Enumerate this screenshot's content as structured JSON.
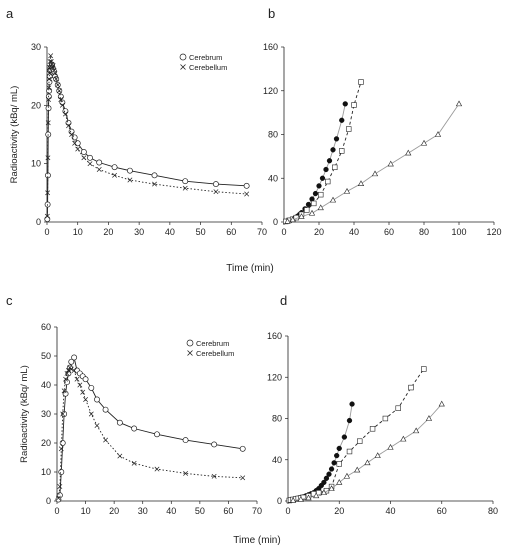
{
  "figure": {
    "shared_xlabel": "Time (min)",
    "panels": [
      {
        "label": "a"
      },
      {
        "label": "b"
      },
      {
        "label": "c"
      },
      {
        "label": "d"
      }
    ]
  },
  "colors": {
    "ink": "#222222",
    "grey_line": "#9a9a9a"
  },
  "chart_data": [
    {
      "panel": "a",
      "type": "line",
      "xlabel": "",
      "ylabel": "Radioactivity (kBq/ mL)",
      "xlim": [
        0,
        70
      ],
      "ylim": [
        0,
        30
      ],
      "xticks": [
        0,
        10,
        20,
        30,
        40,
        50,
        60,
        70
      ],
      "yticks": [
        0,
        10,
        20,
        30
      ],
      "grid": false,
      "legend_position": "top-right",
      "series": [
        {
          "name": "Cerebrum",
          "marker": "circle",
          "line": "solid",
          "x": [
            0.1,
            0.2,
            0.3,
            0.4,
            0.5,
            0.6,
            0.7,
            0.8,
            0.9,
            1.0,
            1.2,
            1.4,
            1.6,
            1.8,
            2.0,
            2.3,
            2.6,
            3.0,
            3.5,
            4.0,
            4.5,
            5.0,
            6.0,
            7.0,
            8.0,
            9.0,
            10.0,
            12.0,
            14.0,
            17.0,
            22.0,
            27.0,
            35.0,
            45.0,
            55.0,
            65.0
          ],
          "y": [
            0.5,
            3.0,
            8.0,
            15.0,
            19.5,
            21.5,
            22.5,
            24.0,
            25.0,
            26.0,
            26.5,
            26.0,
            27.0,
            26.5,
            26.2,
            25.8,
            25.0,
            24.5,
            23.5,
            22.5,
            21.5,
            20.5,
            19.0,
            17.0,
            15.5,
            14.5,
            13.5,
            12.0,
            11.0,
            10.2,
            9.4,
            8.8,
            8.0,
            7.0,
            6.5,
            6.2
          ]
        },
        {
          "name": "Cerebellum",
          "marker": "x",
          "line": "dotted",
          "x": [
            0.1,
            0.2,
            0.3,
            0.4,
            0.5,
            0.6,
            0.7,
            0.8,
            0.9,
            1.0,
            1.2,
            1.4,
            1.6,
            1.8,
            2.0,
            2.3,
            2.6,
            3.0,
            3.5,
            4.0,
            4.5,
            5.0,
            6.0,
            7.0,
            8.0,
            9.0,
            10.0,
            12.0,
            14.0,
            17.0,
            22.0,
            27.0,
            35.0,
            45.0,
            55.0,
            65.0
          ],
          "y": [
            1.0,
            5.0,
            11.0,
            17.0,
            21.0,
            23.0,
            24.5,
            25.5,
            26.5,
            27.5,
            28.5,
            27.5,
            27.0,
            26.5,
            26.8,
            26.0,
            25.5,
            24.5,
            23.5,
            22.5,
            21.0,
            20.0,
            18.5,
            16.5,
            15.0,
            13.5,
            12.5,
            11.0,
            10.0,
            9.0,
            8.0,
            7.2,
            6.5,
            5.8,
            5.2,
            4.8
          ]
        }
      ]
    },
    {
      "panel": "b",
      "type": "scatter",
      "xlabel": "",
      "ylabel": "",
      "xlim": [
        0,
        120
      ],
      "ylim": [
        0,
        160
      ],
      "xticks": [
        0,
        20,
        40,
        60,
        80,
        100,
        120
      ],
      "yticks": [
        0,
        40,
        80,
        120,
        160
      ],
      "grid": false,
      "series": [
        {
          "marker": "filled-circle",
          "line": "solid-grey",
          "x": [
            1,
            2,
            3,
            4,
            5,
            6,
            7,
            8,
            9,
            10,
            12,
            14,
            16,
            18,
            20,
            22,
            24,
            26,
            28,
            30,
            33,
            35
          ],
          "y": [
            0.5,
            1,
            1.5,
            2,
            2.5,
            3.5,
            4.5,
            5.5,
            7,
            8.5,
            12,
            16,
            21,
            26,
            33,
            40,
            48,
            56,
            66,
            76,
            93,
            108
          ]
        },
        {
          "marker": "open-square",
          "line": "dashed",
          "x": [
            1,
            3,
            5,
            7,
            10,
            13,
            17,
            21,
            25,
            29,
            33,
            37,
            40,
            44
          ],
          "y": [
            0.5,
            1.5,
            2.5,
            4,
            7,
            11,
            17,
            25,
            37,
            50,
            65,
            85,
            107,
            128
          ]
        },
        {
          "marker": "open-triangle",
          "line": "solid-grey",
          "x": [
            2,
            5,
            10,
            16,
            21,
            28,
            36,
            44,
            52,
            61,
            71,
            80,
            88,
            100
          ],
          "y": [
            0.5,
            2,
            5,
            8,
            13,
            20,
            28,
            35,
            44,
            53,
            63,
            72,
            80,
            108
          ]
        }
      ]
    },
    {
      "panel": "c",
      "type": "line",
      "xlabel": "",
      "ylabel": "Radioactivity (kBq/ mL)",
      "xlim": [
        0,
        70
      ],
      "ylim": [
        0,
        60
      ],
      "xticks": [
        0,
        10,
        20,
        30,
        40,
        50,
        60,
        70
      ],
      "yticks": [
        0,
        10,
        20,
        30,
        40,
        50,
        60
      ],
      "grid": false,
      "legend_position": "top-right",
      "series": [
        {
          "name": "Cerebrum",
          "marker": "circle",
          "line": "solid",
          "x": [
            0.5,
            1.0,
            1.5,
            2.0,
            2.5,
            3.0,
            3.5,
            4.0,
            4.5,
            5.0,
            6.0,
            7.0,
            8.0,
            9.0,
            10.0,
            12.0,
            14.0,
            17.0,
            22.0,
            27.0,
            35.0,
            45.0,
            55.0,
            65.0
          ],
          "y": [
            0.5,
            2.0,
            10.0,
            20.0,
            30.0,
            37.0,
            41.0,
            44.0,
            46.0,
            48.0,
            49.5,
            45.0,
            44.0,
            43.0,
            42.0,
            39.0,
            35.0,
            31.5,
            27.0,
            25.0,
            23.0,
            21.0,
            19.5,
            18.0
          ]
        },
        {
          "name": "Cerebellum",
          "marker": "x",
          "line": "dotted",
          "x": [
            0.5,
            1.0,
            1.5,
            2.0,
            2.5,
            3.0,
            3.5,
            4.0,
            4.5,
            5.0,
            6.0,
            7.0,
            8.0,
            9.0,
            10.0,
            12.0,
            14.0,
            17.0,
            22.0,
            27.0,
            35.0,
            45.0,
            55.0,
            65.0
          ],
          "y": [
            1.0,
            5.0,
            18.0,
            30.0,
            38.0,
            42.0,
            44.0,
            45.0,
            46.0,
            45.5,
            45.0,
            42.0,
            40.0,
            37.5,
            35.0,
            30.0,
            26.0,
            21.0,
            15.5,
            13.0,
            11.0,
            9.5,
            8.5,
            8.0
          ]
        }
      ]
    },
    {
      "panel": "d",
      "type": "scatter",
      "xlabel": "",
      "ylabel": "",
      "xlim": [
        0,
        80
      ],
      "ylim": [
        0,
        160
      ],
      "xticks": [
        0,
        20,
        40,
        60,
        80
      ],
      "yticks": [
        0,
        40,
        80,
        120,
        160
      ],
      "grid": false,
      "series": [
        {
          "marker": "filled-circle",
          "line": "solid-grey",
          "x": [
            0.5,
            1,
            1.5,
            2,
            2.5,
            3,
            3.5,
            4,
            4.5,
            5,
            6,
            7,
            8,
            9,
            10,
            11,
            12,
            13,
            14,
            15,
            16,
            17,
            18,
            19,
            20,
            22,
            24,
            25
          ],
          "y": [
            0.5,
            1,
            1.2,
            1.5,
            1.8,
            2,
            2.3,
            2.7,
            3,
            3.5,
            4,
            5,
            6,
            7,
            8,
            10,
            12,
            15,
            18,
            22,
            26,
            31,
            37,
            44,
            51,
            62,
            78,
            94
          ]
        },
        {
          "marker": "open-square",
          "line": "dashed",
          "x": [
            0.5,
            1,
            2,
            3,
            4,
            5,
            6,
            8,
            10,
            12,
            15,
            17,
            20,
            24,
            28,
            33,
            38,
            43,
            48,
            53
          ],
          "y": [
            0.5,
            1,
            1.5,
            2,
            2.5,
            3,
            3.5,
            5,
            7,
            8,
            10,
            14,
            36,
            48,
            58,
            70,
            80,
            90,
            110,
            128
          ]
        },
        {
          "marker": "open-triangle",
          "line": "solid-grey",
          "x": [
            2,
            5,
            8,
            11,
            14,
            17,
            20,
            23,
            27,
            31,
            35,
            40,
            45,
            50,
            55,
            60
          ],
          "y": [
            0.5,
            1.5,
            3,
            5,
            8,
            12,
            18,
            24,
            30,
            37,
            44,
            52,
            60,
            68,
            80,
            94
          ]
        }
      ]
    }
  ]
}
